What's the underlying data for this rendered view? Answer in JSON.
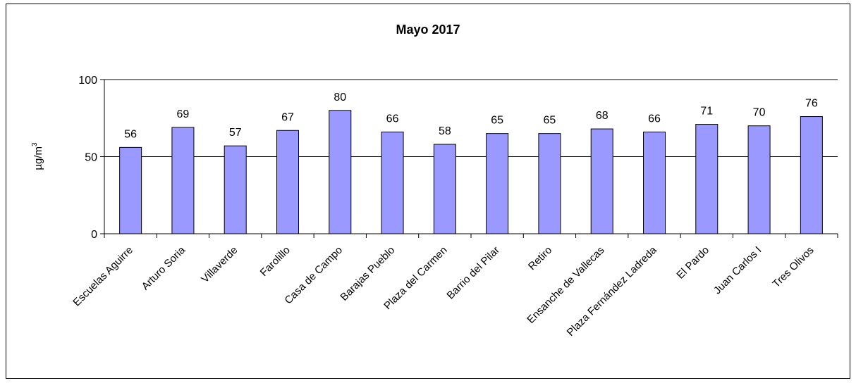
{
  "chart_data": {
    "type": "bar",
    "title": "Mayo 2017",
    "ylabel": "µg/m",
    "ylabel_sup": "3",
    "ylim": [
      0,
      100
    ],
    "yticks": [
      0,
      50,
      100
    ],
    "grid": true,
    "bar_color": "#9999ff",
    "categories": [
      "Escuelas Aguirre",
      "Arturo Soria",
      "Villaverde",
      "Farolillo",
      "Casa de Campo",
      "Barajas Pueblo",
      "Plaza del Carmen",
      "Barrio del Pilar",
      "Retiro",
      "Ensanche de Vallecas",
      "Plaza Fernández Ladreda",
      "El Pardo",
      "Juan Carlos I",
      "Tres Olivos"
    ],
    "values": [
      56,
      69,
      57,
      67,
      80,
      66,
      58,
      65,
      65,
      68,
      66,
      71,
      70,
      76
    ]
  }
}
